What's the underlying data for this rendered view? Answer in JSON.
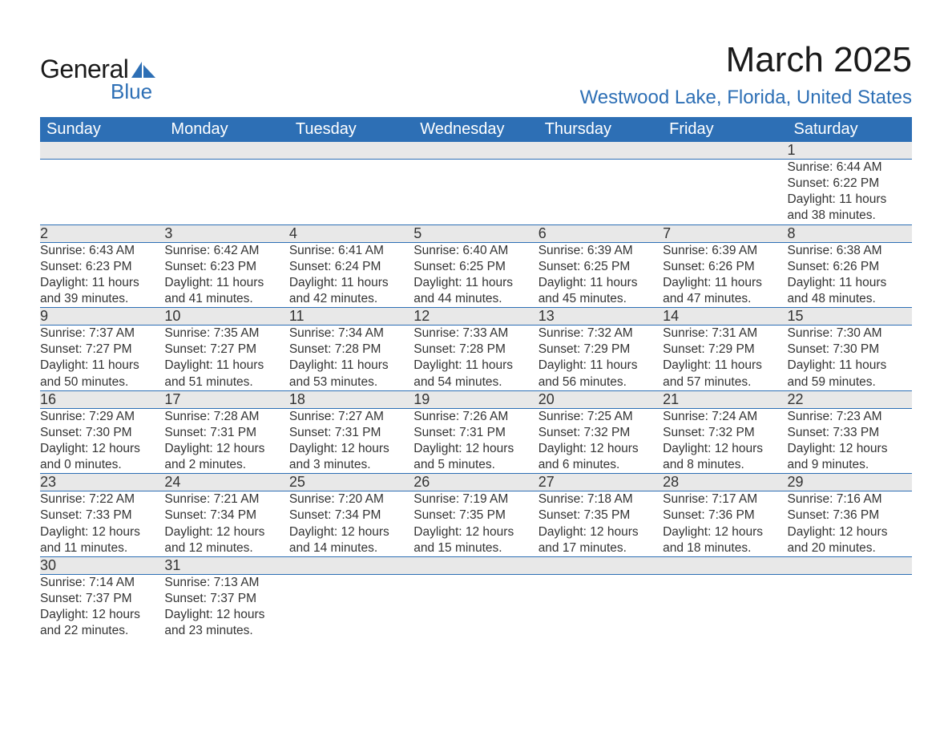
{
  "brand": {
    "text_general": "General",
    "text_blue": "Blue",
    "icon_color": "#2d6fb5"
  },
  "header": {
    "month_title": "March 2025",
    "location": "Westwood Lake, Florida, United States"
  },
  "style": {
    "header_bg": "#2d6fb5",
    "header_fg": "#ffffff",
    "daynum_bg": "#e8e8e8",
    "row_divider": "#2d6fb5",
    "body_bg": "#ffffff",
    "text_color": "#333333",
    "brand_blue": "#2d6fb5",
    "month_title_fontsize": 44,
    "location_fontsize": 24,
    "dayheader_fontsize": 20,
    "daynum_fontsize": 18,
    "cell_fontsize": 15.5
  },
  "calendar": {
    "day_headers": [
      "Sunday",
      "Monday",
      "Tuesday",
      "Wednesday",
      "Thursday",
      "Friday",
      "Saturday"
    ],
    "weeks": [
      {
        "days": [
          null,
          null,
          null,
          null,
          null,
          null,
          {
            "n": "1",
            "sunrise": "Sunrise: 6:44 AM",
            "sunset": "Sunset: 6:22 PM",
            "dl1": "Daylight: 11 hours",
            "dl2": "and 38 minutes."
          }
        ]
      },
      {
        "days": [
          {
            "n": "2",
            "sunrise": "Sunrise: 6:43 AM",
            "sunset": "Sunset: 6:23 PM",
            "dl1": "Daylight: 11 hours",
            "dl2": "and 39 minutes."
          },
          {
            "n": "3",
            "sunrise": "Sunrise: 6:42 AM",
            "sunset": "Sunset: 6:23 PM",
            "dl1": "Daylight: 11 hours",
            "dl2": "and 41 minutes."
          },
          {
            "n": "4",
            "sunrise": "Sunrise: 6:41 AM",
            "sunset": "Sunset: 6:24 PM",
            "dl1": "Daylight: 11 hours",
            "dl2": "and 42 minutes."
          },
          {
            "n": "5",
            "sunrise": "Sunrise: 6:40 AM",
            "sunset": "Sunset: 6:25 PM",
            "dl1": "Daylight: 11 hours",
            "dl2": "and 44 minutes."
          },
          {
            "n": "6",
            "sunrise": "Sunrise: 6:39 AM",
            "sunset": "Sunset: 6:25 PM",
            "dl1": "Daylight: 11 hours",
            "dl2": "and 45 minutes."
          },
          {
            "n": "7",
            "sunrise": "Sunrise: 6:39 AM",
            "sunset": "Sunset: 6:26 PM",
            "dl1": "Daylight: 11 hours",
            "dl2": "and 47 minutes."
          },
          {
            "n": "8",
            "sunrise": "Sunrise: 6:38 AM",
            "sunset": "Sunset: 6:26 PM",
            "dl1": "Daylight: 11 hours",
            "dl2": "and 48 minutes."
          }
        ]
      },
      {
        "days": [
          {
            "n": "9",
            "sunrise": "Sunrise: 7:37 AM",
            "sunset": "Sunset: 7:27 PM",
            "dl1": "Daylight: 11 hours",
            "dl2": "and 50 minutes."
          },
          {
            "n": "10",
            "sunrise": "Sunrise: 7:35 AM",
            "sunset": "Sunset: 7:27 PM",
            "dl1": "Daylight: 11 hours",
            "dl2": "and 51 minutes."
          },
          {
            "n": "11",
            "sunrise": "Sunrise: 7:34 AM",
            "sunset": "Sunset: 7:28 PM",
            "dl1": "Daylight: 11 hours",
            "dl2": "and 53 minutes."
          },
          {
            "n": "12",
            "sunrise": "Sunrise: 7:33 AM",
            "sunset": "Sunset: 7:28 PM",
            "dl1": "Daylight: 11 hours",
            "dl2": "and 54 minutes."
          },
          {
            "n": "13",
            "sunrise": "Sunrise: 7:32 AM",
            "sunset": "Sunset: 7:29 PM",
            "dl1": "Daylight: 11 hours",
            "dl2": "and 56 minutes."
          },
          {
            "n": "14",
            "sunrise": "Sunrise: 7:31 AM",
            "sunset": "Sunset: 7:29 PM",
            "dl1": "Daylight: 11 hours",
            "dl2": "and 57 minutes."
          },
          {
            "n": "15",
            "sunrise": "Sunrise: 7:30 AM",
            "sunset": "Sunset: 7:30 PM",
            "dl1": "Daylight: 11 hours",
            "dl2": "and 59 minutes."
          }
        ]
      },
      {
        "days": [
          {
            "n": "16",
            "sunrise": "Sunrise: 7:29 AM",
            "sunset": "Sunset: 7:30 PM",
            "dl1": "Daylight: 12 hours",
            "dl2": "and 0 minutes."
          },
          {
            "n": "17",
            "sunrise": "Sunrise: 7:28 AM",
            "sunset": "Sunset: 7:31 PM",
            "dl1": "Daylight: 12 hours",
            "dl2": "and 2 minutes."
          },
          {
            "n": "18",
            "sunrise": "Sunrise: 7:27 AM",
            "sunset": "Sunset: 7:31 PM",
            "dl1": "Daylight: 12 hours",
            "dl2": "and 3 minutes."
          },
          {
            "n": "19",
            "sunrise": "Sunrise: 7:26 AM",
            "sunset": "Sunset: 7:31 PM",
            "dl1": "Daylight: 12 hours",
            "dl2": "and 5 minutes."
          },
          {
            "n": "20",
            "sunrise": "Sunrise: 7:25 AM",
            "sunset": "Sunset: 7:32 PM",
            "dl1": "Daylight: 12 hours",
            "dl2": "and 6 minutes."
          },
          {
            "n": "21",
            "sunrise": "Sunrise: 7:24 AM",
            "sunset": "Sunset: 7:32 PM",
            "dl1": "Daylight: 12 hours",
            "dl2": "and 8 minutes."
          },
          {
            "n": "22",
            "sunrise": "Sunrise: 7:23 AM",
            "sunset": "Sunset: 7:33 PM",
            "dl1": "Daylight: 12 hours",
            "dl2": "and 9 minutes."
          }
        ]
      },
      {
        "days": [
          {
            "n": "23",
            "sunrise": "Sunrise: 7:22 AM",
            "sunset": "Sunset: 7:33 PM",
            "dl1": "Daylight: 12 hours",
            "dl2": "and 11 minutes."
          },
          {
            "n": "24",
            "sunrise": "Sunrise: 7:21 AM",
            "sunset": "Sunset: 7:34 PM",
            "dl1": "Daylight: 12 hours",
            "dl2": "and 12 minutes."
          },
          {
            "n": "25",
            "sunrise": "Sunrise: 7:20 AM",
            "sunset": "Sunset: 7:34 PM",
            "dl1": "Daylight: 12 hours",
            "dl2": "and 14 minutes."
          },
          {
            "n": "26",
            "sunrise": "Sunrise: 7:19 AM",
            "sunset": "Sunset: 7:35 PM",
            "dl1": "Daylight: 12 hours",
            "dl2": "and 15 minutes."
          },
          {
            "n": "27",
            "sunrise": "Sunrise: 7:18 AM",
            "sunset": "Sunset: 7:35 PM",
            "dl1": "Daylight: 12 hours",
            "dl2": "and 17 minutes."
          },
          {
            "n": "28",
            "sunrise": "Sunrise: 7:17 AM",
            "sunset": "Sunset: 7:36 PM",
            "dl1": "Daylight: 12 hours",
            "dl2": "and 18 minutes."
          },
          {
            "n": "29",
            "sunrise": "Sunrise: 7:16 AM",
            "sunset": "Sunset: 7:36 PM",
            "dl1": "Daylight: 12 hours",
            "dl2": "and 20 minutes."
          }
        ]
      },
      {
        "days": [
          {
            "n": "30",
            "sunrise": "Sunrise: 7:14 AM",
            "sunset": "Sunset: 7:37 PM",
            "dl1": "Daylight: 12 hours",
            "dl2": "and 22 minutes."
          },
          {
            "n": "31",
            "sunrise": "Sunrise: 7:13 AM",
            "sunset": "Sunset: 7:37 PM",
            "dl1": "Daylight: 12 hours",
            "dl2": "and 23 minutes."
          },
          null,
          null,
          null,
          null,
          null
        ]
      }
    ]
  }
}
